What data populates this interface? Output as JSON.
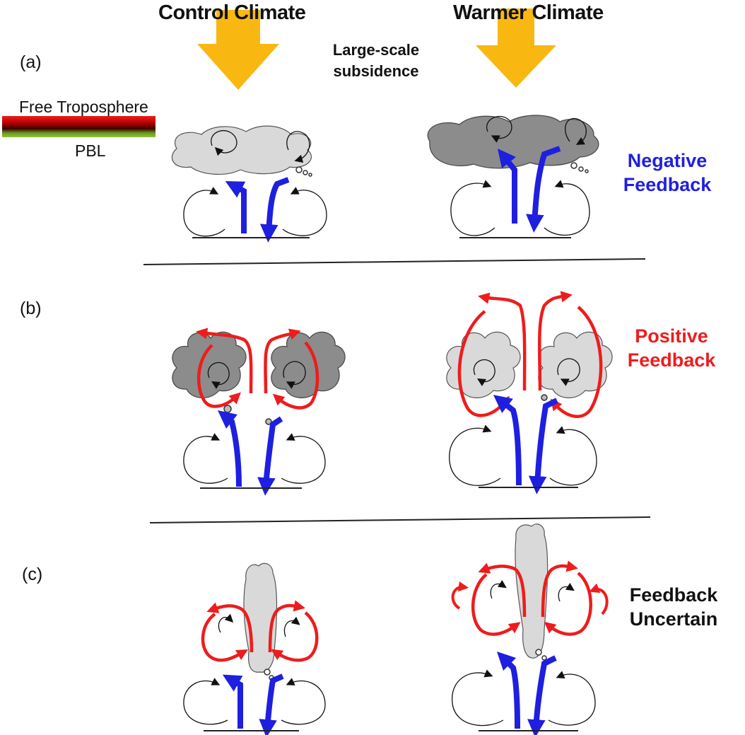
{
  "headers": {
    "control": "Control Climate",
    "warmer": "Warmer Climate"
  },
  "subsidence": {
    "line1": "Large-scale",
    "line2": "subsidence"
  },
  "legend": {
    "top": "Free Troposphere",
    "bottom": "PBL"
  },
  "panels": [
    {
      "label": "(a)",
      "feedback_line1": "Negative",
      "feedback_line2": "Feedback",
      "feedback_color": "#1f1fe0"
    },
    {
      "label": "(b)",
      "feedback_line1": "Positive",
      "feedback_line2": "Feedback",
      "feedback_color": "#ee1c1c"
    },
    {
      "label": "(c)",
      "feedback_line1": "Feedback",
      "feedback_line2": "Uncertain",
      "feedback_color": "#111111"
    }
  ],
  "colors": {
    "subsidence_arrow": "#f9b712",
    "updraft": "#1f1fe0",
    "detrainment": "#ee1c1c",
    "cloud_dark": "#8c8c8c",
    "cloud_light": "#d9d9d9",
    "legend_gradient": [
      "#ee1c1c",
      "#3a0000",
      "#7cb82f"
    ]
  }
}
